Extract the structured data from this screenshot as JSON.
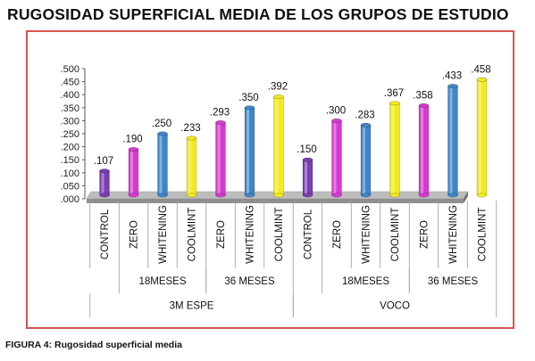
{
  "title": "RUGOSIDAD SUPERFICIAL MEDIA DE LOS GRUPOS DE ESTUDIO",
  "caption": "FIGURA 4: Rugosidad  superficial media",
  "colors": {
    "purple": "#7a3fb0",
    "magenta": "#d63ad0",
    "blue": "#3f86c9",
    "yellow": "#f2ea1e",
    "frame": "#d9534f"
  },
  "chart_data": {
    "type": "bar",
    "title": "RUGOSIDAD SUPERFICIAL MEDIA DE LOS GRUPOS DE ESTUDIO",
    "ylim": [
      0,
      0.5
    ],
    "y_ticks": [
      ".000",
      ".050",
      ".100",
      ".150",
      ".200",
      ".250",
      ".300",
      ".350",
      ".400",
      ".450",
      ".500"
    ],
    "categories": [
      "CONTROL",
      "ZERO",
      "WHITENING",
      "COOLMINT",
      "ZERO",
      "WHITENING",
      "COOLMINT",
      "CONTROL",
      "ZERO",
      "WHITENING",
      "COOLMINT",
      "ZERO",
      "WHITENING",
      "COOLMINT"
    ],
    "values": [
      0.107,
      0.19,
      0.25,
      0.233,
      0.293,
      0.35,
      0.392,
      0.15,
      0.3,
      0.283,
      0.367,
      0.358,
      0.433,
      0.458
    ],
    "value_labels": [
      ".107",
      ".190",
      ".250",
      ".233",
      ".293",
      ".350",
      ".392",
      ".150",
      ".300",
      ".283",
      ".367",
      ".358",
      ".433",
      ".458"
    ],
    "bar_colors": [
      "#7a3fb0",
      "#d63ad0",
      "#3f86c9",
      "#f2ea1e",
      "#d63ad0",
      "#3f86c9",
      "#f2ea1e",
      "#7a3fb0",
      "#d63ad0",
      "#3f86c9",
      "#f2ea1e",
      "#d63ad0",
      "#3f86c9",
      "#f2ea1e"
    ],
    "group_level_1": [
      {
        "label": "18MESES",
        "start": 1,
        "end": 3
      },
      {
        "label": "36 MESES",
        "start": 4,
        "end": 6
      },
      {
        "label": "18MESES",
        "start": 8,
        "end": 10
      },
      {
        "label": "36 MESES",
        "start": 11,
        "end": 13
      }
    ],
    "group_level_2": [
      {
        "label": "3M ESPE",
        "start": 0,
        "end": 6
      },
      {
        "label": "VOCO",
        "start": 7,
        "end": 13
      }
    ],
    "grid": false,
    "legend": "none"
  }
}
